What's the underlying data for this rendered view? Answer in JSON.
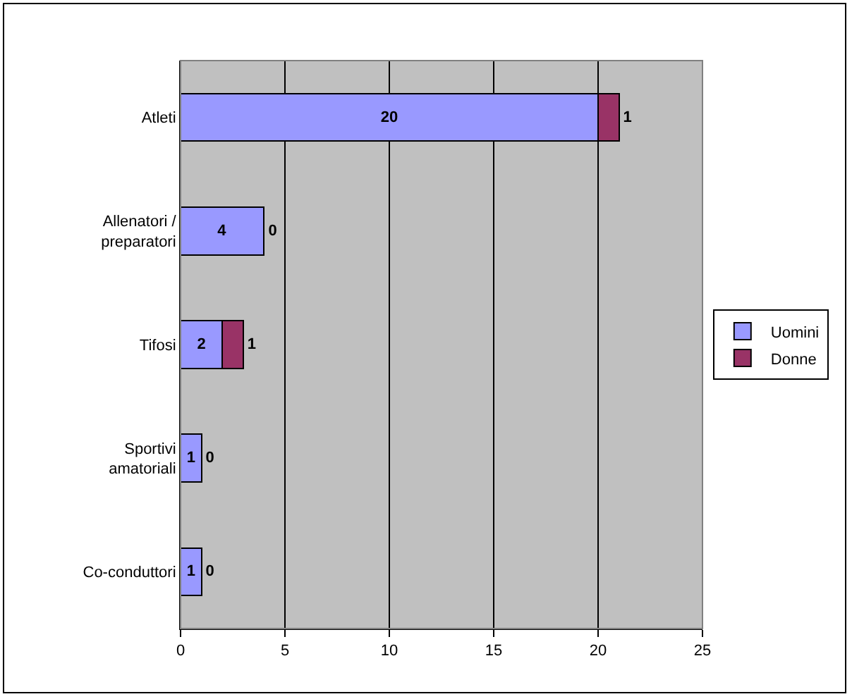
{
  "chart_data": {
    "type": "bar",
    "orientation": "horizontal",
    "stacked": true,
    "categories": [
      "Atleti",
      "Allenatori / preparatori",
      "Tifosi",
      "Sportivi amatoriali",
      "Co-conduttori"
    ],
    "series": [
      {
        "name": "Uomini",
        "color": "#9999ff",
        "values": [
          20,
          4,
          2,
          1,
          1
        ]
      },
      {
        "name": "Donne",
        "color": "#993366",
        "values": [
          1,
          0,
          1,
          0,
          0
        ]
      }
    ],
    "xlim": [
      0,
      25
    ],
    "xticks": [
      0,
      5,
      10,
      15,
      20,
      25
    ],
    "grid": "x",
    "legend": "right",
    "data_labels": true
  }
}
